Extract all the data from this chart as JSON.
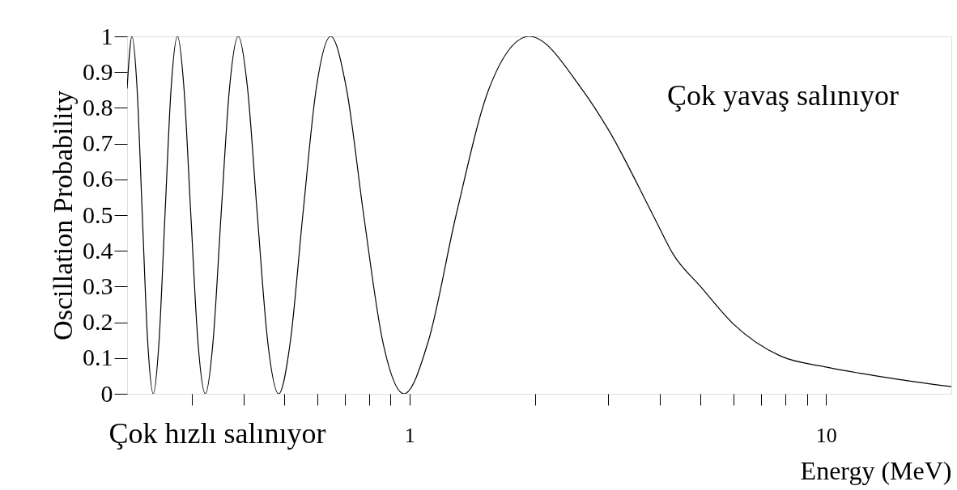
{
  "chart_data": {
    "type": "line",
    "xlabel": "Energy (MeV)",
    "ylabel": "Oscillation Probability",
    "log": "x",
    "grid": false,
    "marker": "none",
    "line_style": "solid",
    "xlim": [
      0.21,
      20
    ],
    "ylim": [
      0,
      1
    ],
    "xticks": [
      {
        "value": 0.3,
        "label": null
      },
      {
        "value": 0.4,
        "label": null
      },
      {
        "value": 0.5,
        "label": null
      },
      {
        "value": 0.6,
        "label": null
      },
      {
        "value": 0.7,
        "label": null
      },
      {
        "value": 0.8,
        "label": null
      },
      {
        "value": 0.9,
        "label": null
      },
      1,
      {
        "value": 2,
        "label": null
      },
      {
        "value": 3,
        "label": null
      },
      {
        "value": 4,
        "label": null
      },
      {
        "value": 5,
        "label": null
      },
      {
        "value": 6,
        "label": null
      },
      {
        "value": 7,
        "label": null
      },
      {
        "value": 8,
        "label": null
      },
      {
        "value": 9,
        "label": null
      },
      10
    ],
    "yticks": [
      0,
      0.1,
      0.2,
      0.3,
      0.4,
      0.5,
      0.6,
      0.7,
      0.8,
      0.9,
      1
    ],
    "series": [
      {
        "color": "#000000",
        "x": [
          0.21,
          0.2157,
          0.2219,
          0.2284,
          0.2353,
          0.2427,
          0.2505,
          0.2589,
          0.2678,
          0.2774,
          0.2876,
          0.2987,
          0.3106,
          0.3236,
          0.3377,
          0.353,
          0.3698,
          0.3883,
          0.4087,
          0.4314,
          0.4568,
          0.4854,
          0.5177,
          0.5547,
          0.5974,
          0.6472,
          0.706,
          0.7766,
          0.8629,
          0.9708,
          1.1094,
          1.2943,
          1.5532,
          1.9415,
          2.589,
          3,
          3.883,
          4.3,
          5,
          6,
          7.766,
          10,
          12,
          15,
          20
        ],
        "values": [
          0.854,
          1,
          0.854,
          0.5,
          0.146,
          0,
          0.146,
          0.5,
          0.854,
          1,
          0.854,
          0.5,
          0.146,
          0,
          0.146,
          0.5,
          0.854,
          1,
          0.854,
          0.5,
          0.146,
          0,
          0.146,
          0.5,
          0.854,
          1,
          0.854,
          0.5,
          0.146,
          0,
          0.146,
          0.5,
          0.854,
          1,
          0.854,
          0.74,
          0.49,
          0.39,
          0.3,
          0.195,
          0.106,
          0.075,
          0.058,
          0.04,
          0.02
        ]
      }
    ],
    "annotations": [
      "Çok hızlı salınıyor",
      "Çok yavaş salınıyor"
    ]
  }
}
